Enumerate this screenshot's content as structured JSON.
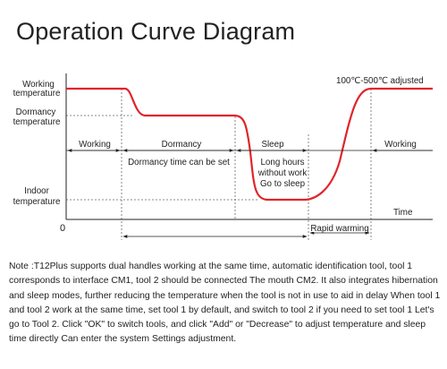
{
  "title": "Operation Curve Diagram",
  "diagram": {
    "y_labels": {
      "working_line1": "Working",
      "working_line2": "temperature",
      "dormancy_line1": "Dormancy",
      "dormancy_line2": "temperature",
      "indoor_line1": "Indoor",
      "indoor_line2": "temperature"
    },
    "origin_label": "0",
    "time_label": "Time",
    "adjust_label": "100℃-500℃ adjusted",
    "phases": {
      "working_start": "Working",
      "dormancy": "Dormancy",
      "sleep": "Sleep",
      "working_end": "Working"
    },
    "dormancy_time_label": "Dormancy time can be set",
    "sleep_note_line1": "Long hours",
    "sleep_note_line2": "without work",
    "sleep_note_line3": "Go to sleep",
    "rapid_warming_label": "Rapid warming",
    "colors": {
      "curve": "#e0252b",
      "axis": "#222222",
      "dashed": "#555555"
    }
  },
  "note": "Note :T12Plus supports dual handles working at the same time, automatic identification tool, tool 1 corresponds to interface CM1, tool 2 should be connected The mouth CM2. It also integrates hibernation and sleep modes, further reducing the temperature when the tool is not in use to aid in delay When tool 1 and tool 2 work at the same time, set tool 1 by default, and switch to tool 2 if you need to set tool 1 Let's go to Tool 2. Click \"OK\" to switch tools, and click \"Add\" or \"Decrease\" to adjust temperature and sleep time directly Can enter the system Settings adjustment."
}
